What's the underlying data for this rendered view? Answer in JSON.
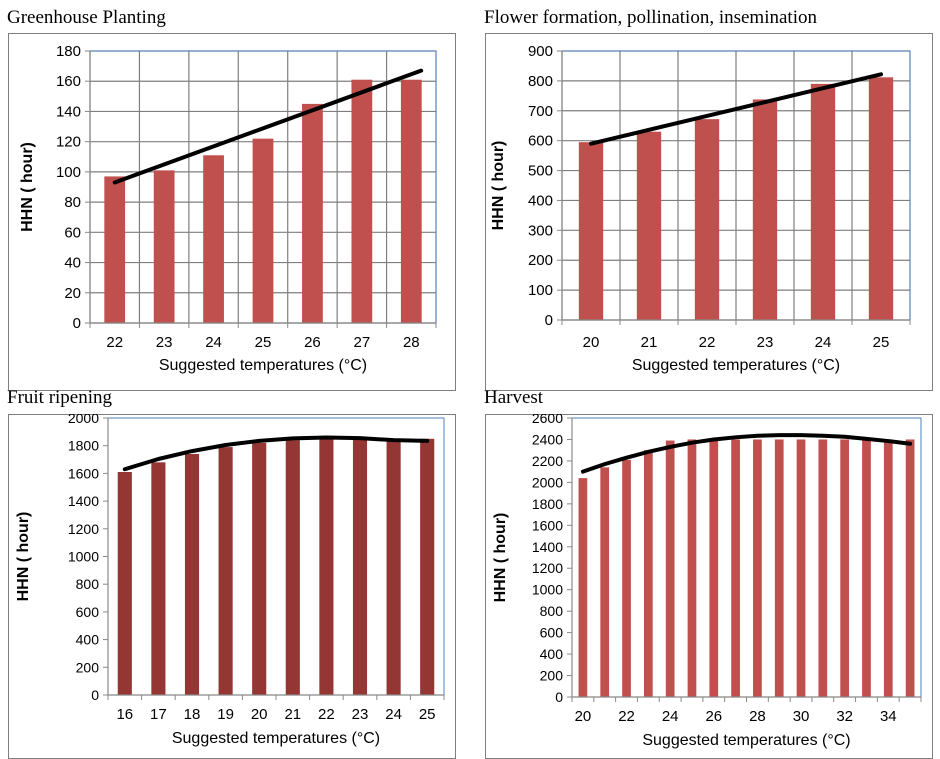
{
  "chart_data": [
    {
      "type": "bar",
      "title": "Greenhouse Planting",
      "xlabel": "Suggested temperatures (°C)",
      "ylabel": "HHN ( hour)",
      "categories": [
        "22",
        "23",
        "24",
        "25",
        "26",
        "27",
        "28"
      ],
      "values": [
        97,
        101,
        111,
        122,
        145,
        161,
        161
      ],
      "ylim": [
        0,
        180
      ],
      "yticks": [
        "0",
        "20",
        "40",
        "60",
        "80",
        "100",
        "120",
        "140",
        "160",
        "180"
      ],
      "trendline": {
        "type": "linear",
        "start": 93,
        "end": 167
      },
      "bar_color": "#c0504d",
      "grid": true
    },
    {
      "type": "bar",
      "title": "Flower formation, pollination, insemination",
      "xlabel": "Suggested temperatures (°C)",
      "ylabel": "HHN ( hour)",
      "categories": [
        "20",
        "21",
        "22",
        "23",
        "24",
        "25"
      ],
      "values": [
        595,
        630,
        672,
        738,
        790,
        812
      ],
      "ylim": [
        0,
        900
      ],
      "yticks": [
        "0",
        "100",
        "200",
        "300",
        "400",
        "500",
        "600",
        "700",
        "800",
        "900"
      ],
      "trendline": {
        "type": "linear",
        "start": 590,
        "end": 822
      },
      "bar_color": "#c0504d",
      "grid": true
    },
    {
      "type": "bar",
      "title": "Fruit ripening",
      "xlabel": "Suggested temperatures (°C)",
      "ylabel": "HHN ( hour)",
      "categories": [
        "16",
        "17",
        "18",
        "19",
        "20",
        "21",
        "22",
        "23",
        "24",
        "25"
      ],
      "values": [
        1610,
        1680,
        1740,
        1790,
        1820,
        1840,
        1860,
        1860,
        1850,
        1850
      ],
      "ylim": [
        0,
        2000
      ],
      "yticks": [
        "0",
        "200",
        "400",
        "600",
        "800",
        "1000",
        "1200",
        "1400",
        "1600",
        "1800",
        "2000"
      ],
      "trendline": {
        "type": "polynomial",
        "points": [
          1630,
          1704,
          1761,
          1805,
          1835,
          1853,
          1859,
          1855,
          1840,
          1835
        ]
      },
      "bar_color": "#943634",
      "grid": false
    },
    {
      "type": "bar",
      "title": "Harvest",
      "xlabel": "Suggested temperatures (°C)",
      "ylabel": "HHN ( hour)",
      "categories": [
        "20",
        "21",
        "22",
        "23",
        "24",
        "25",
        "26",
        "27",
        "28",
        "29",
        "30",
        "31",
        "32",
        "33",
        "34",
        "35"
      ],
      "tick_labels": [
        "20",
        "",
        "22",
        "",
        "24",
        "",
        "26",
        "",
        "28",
        "",
        "30",
        "",
        "32",
        "",
        "34",
        ""
      ],
      "values": [
        2040,
        2140,
        2210,
        2300,
        2390,
        2400,
        2400,
        2400,
        2400,
        2400,
        2400,
        2400,
        2400,
        2400,
        2400,
        2400
      ],
      "ylim": [
        0,
        2600
      ],
      "yticks": [
        "0",
        "200",
        "400",
        "600",
        "800",
        "1000",
        "1200",
        "1400",
        "1600",
        "1800",
        "2000",
        "2200",
        "2400",
        "2600"
      ],
      "trendline": {
        "type": "polynomial",
        "points": [
          2100,
          2170,
          2230,
          2285,
          2330,
          2370,
          2400,
          2420,
          2435,
          2440,
          2440,
          2435,
          2425,
          2405,
          2385,
          2360
        ]
      },
      "bar_color": "#c0504d",
      "grid": false
    }
  ]
}
